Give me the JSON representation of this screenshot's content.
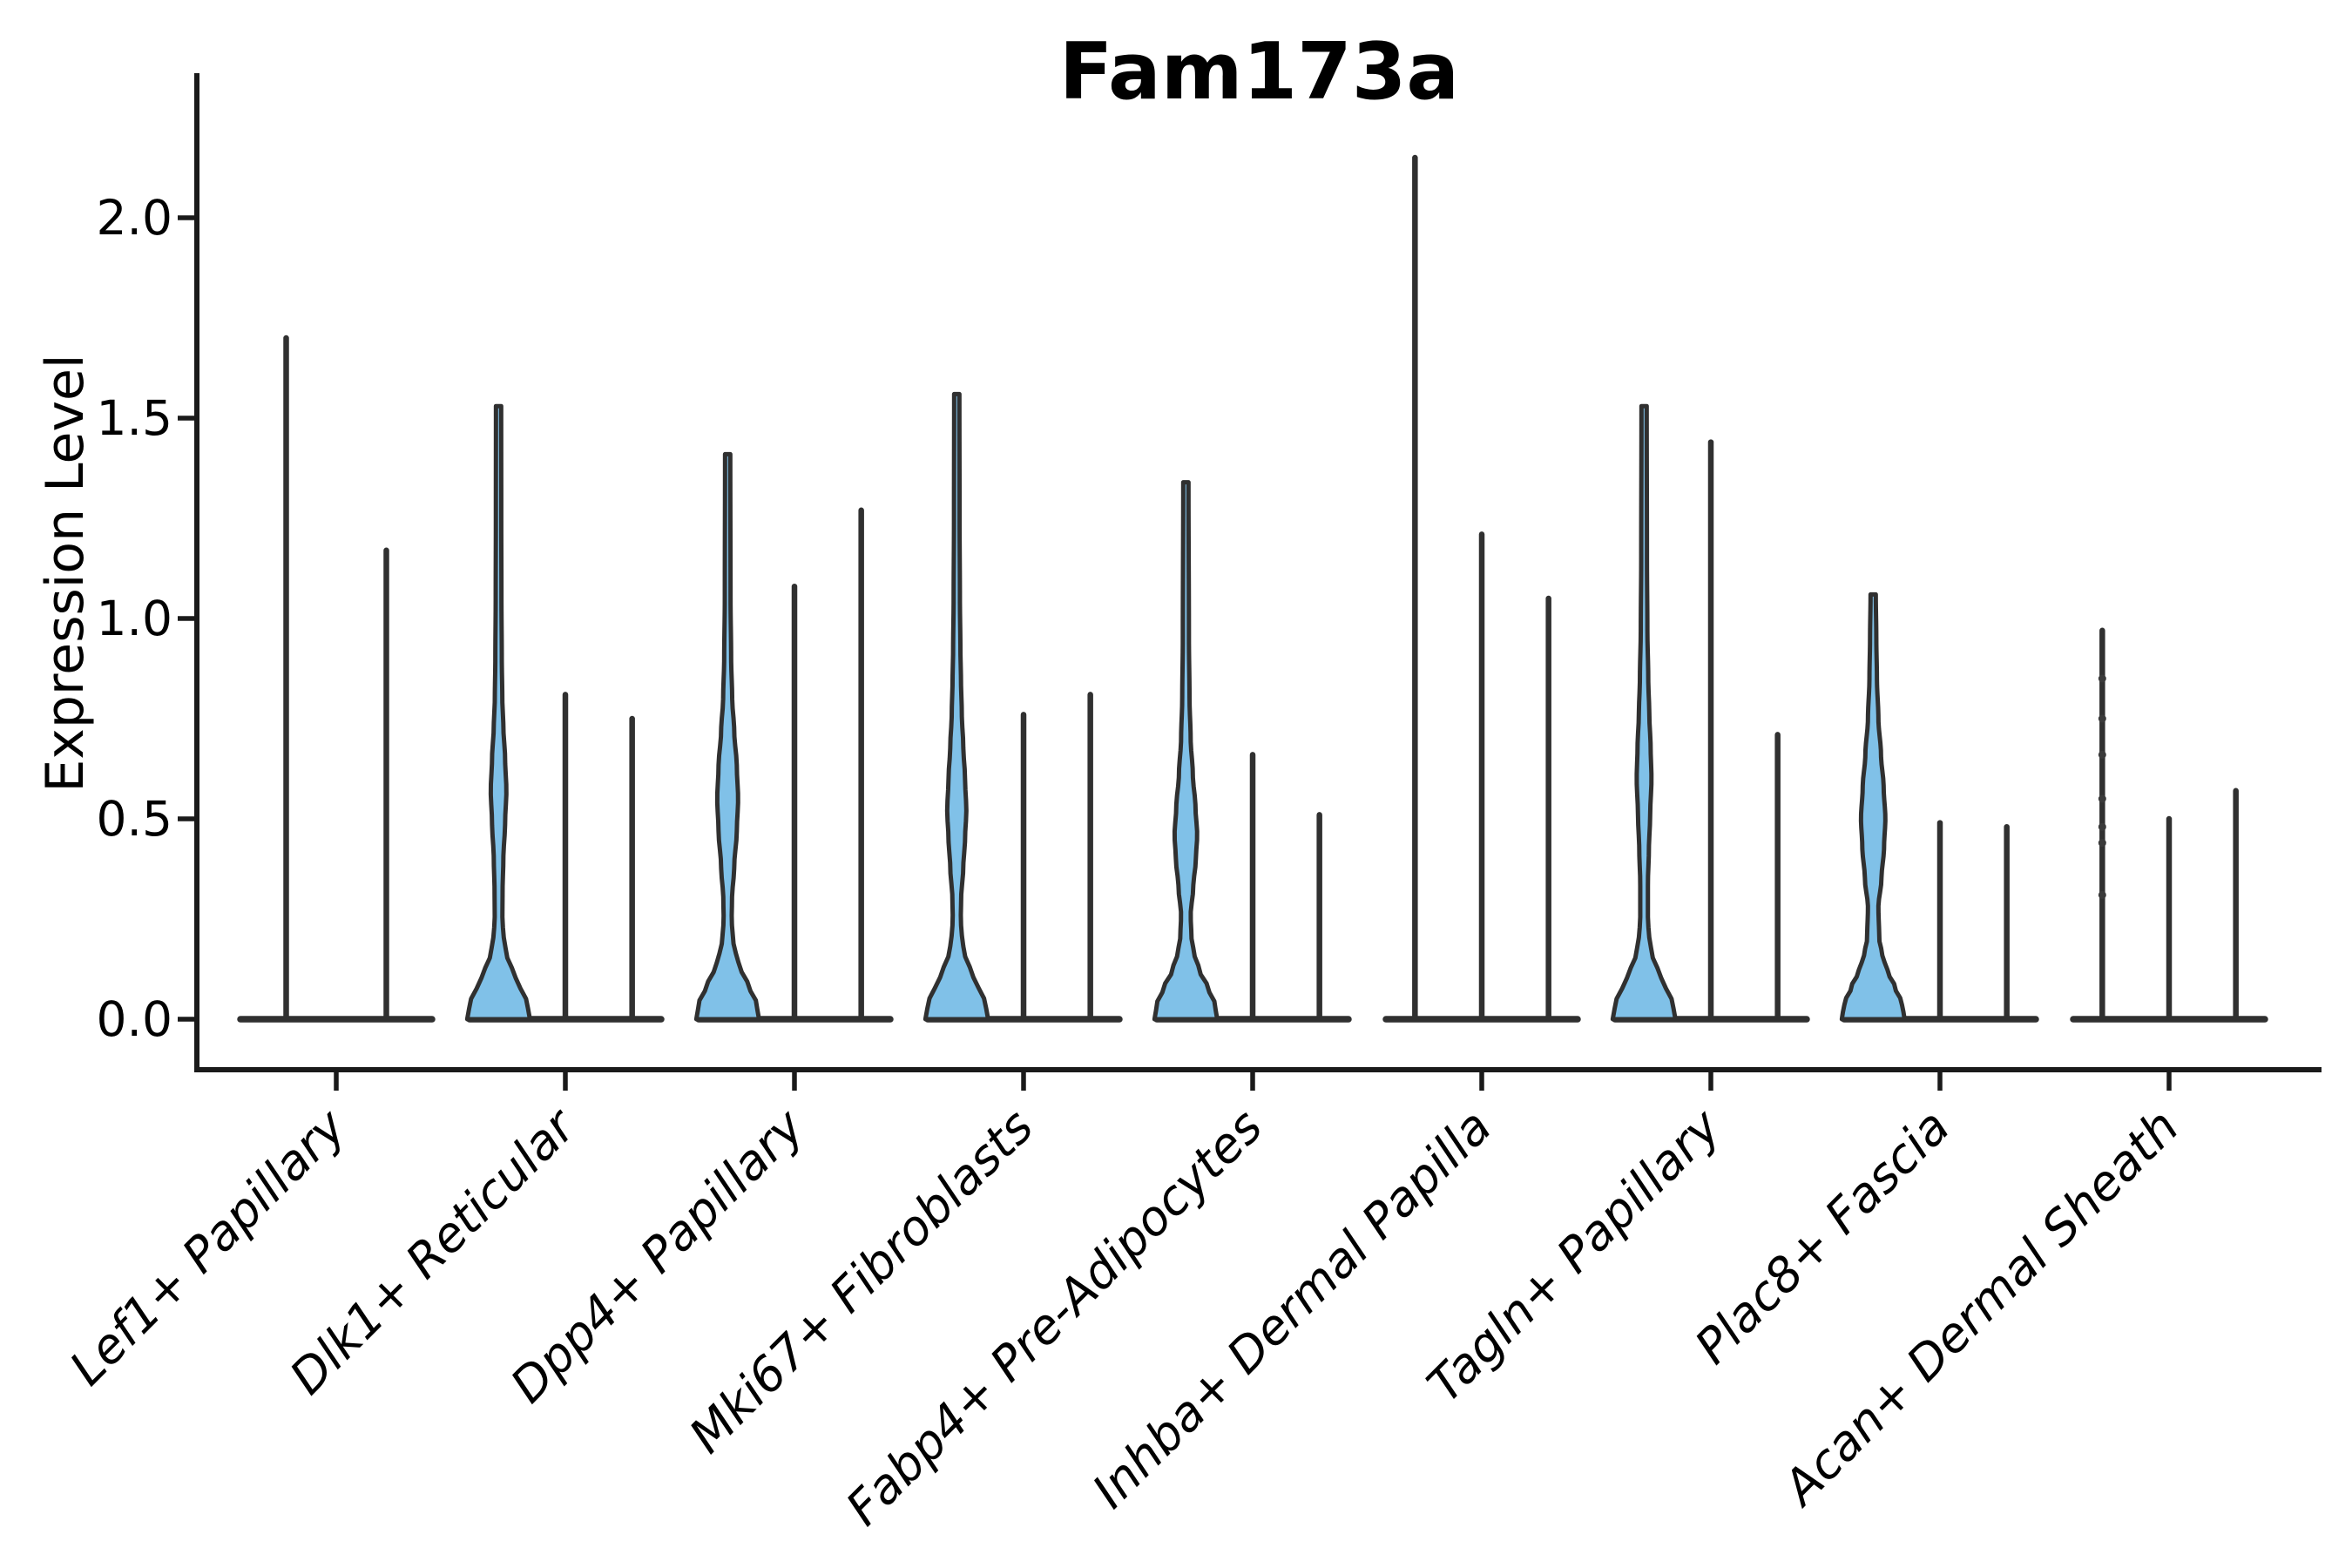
{
  "chart_data": {
    "type": "violin",
    "title": "Fam173a",
    "ylabel": "Expression Level",
    "ylim": [
      0,
      2.41
    ],
    "grid": false,
    "legend": "none",
    "yticks": [
      {
        "value": 0.0,
        "label": "0.0"
      },
      {
        "value": 0.5,
        "label": "0.5"
      },
      {
        "value": 1.0,
        "label": "1.0"
      },
      {
        "value": 1.5,
        "label": "1.5"
      },
      {
        "value": 2.0,
        "label": "2.0"
      }
    ],
    "fill_color": "#80c1e8",
    "edge_color": "#303030",
    "axis_color": "#1a1a1a",
    "categories": [
      "Lef1+ Papillary",
      "Dlk1+ Reticular",
      "Dpp4+ Papillary",
      "Mki67+ Fibroblasts",
      "Fabp4+ Pre-Adipocytes",
      "Inhba+ Dermal Papilla",
      "Tagln+ Papillary",
      "Plac8+ Fascia",
      "Acan+ Dermal Sheath"
    ],
    "groups": [
      {
        "label": "Lef1+ Papillary",
        "violins": [
          {
            "style": "spike",
            "max": 1.7
          },
          {
            "style": "spike",
            "max": 1.17
          }
        ]
      },
      {
        "label": "Dlk1+ Reticular",
        "violins": [
          {
            "style": "violin",
            "max": 1.53,
            "profile": [
              [
                0,
                36
              ],
              [
                0.04,
                33
              ],
              [
                0.08,
                25
              ],
              [
                0.12,
                16
              ],
              [
                0.16,
                9.5
              ],
              [
                0.2,
                6
              ],
              [
                0.25,
                4.4
              ],
              [
                0.32,
                4.6
              ],
              [
                0.4,
                5.5
              ],
              [
                0.49,
                7.5
              ],
              [
                0.57,
                9
              ],
              [
                0.65,
                7.5
              ],
              [
                0.73,
                5.5
              ],
              [
                0.8,
                4.3
              ],
              [
                0.9,
                3.7
              ],
              [
                1.05,
                3.3
              ],
              [
                1.25,
                3.1
              ],
              [
                1.53,
                3
              ]
            ]
          },
          {
            "style": "spike",
            "max": 0.81
          },
          {
            "style": "spike",
            "max": 0.75
          }
        ]
      },
      {
        "label": "Dpp4+ Papillary",
        "violins": [
          {
            "style": "violin",
            "max": 1.41,
            "profile": [
              [
                0,
                36
              ],
              [
                0.04,
                33
              ],
              [
                0.08,
                25
              ],
              [
                0.12,
                16
              ],
              [
                0.16,
                9.5
              ],
              [
                0.2,
                6
              ],
              [
                0.25,
                4.6
              ],
              [
                0.3,
                5
              ],
              [
                0.38,
                7.5
              ],
              [
                0.47,
                10.5
              ],
              [
                0.55,
                12
              ],
              [
                0.63,
                10.5
              ],
              [
                0.72,
                7.5
              ],
              [
                0.8,
                5.2
              ],
              [
                0.9,
                4
              ],
              [
                1.05,
                3.3
              ],
              [
                1.41,
                3
              ]
            ]
          },
          {
            "style": "spike",
            "max": 1.08
          },
          {
            "style": "spike",
            "max": 1.27
          }
        ]
      },
      {
        "label": "Mki67+ Fibroblasts",
        "violins": [
          {
            "style": "violin",
            "max": 1.56,
            "profile": [
              [
                0,
                36
              ],
              [
                0.04,
                33
              ],
              [
                0.08,
                25
              ],
              [
                0.12,
                16
              ],
              [
                0.16,
                9.5
              ],
              [
                0.2,
                6
              ],
              [
                0.25,
                4.6
              ],
              [
                0.3,
                5
              ],
              [
                0.38,
                7.5
              ],
              [
                0.45,
                9.5
              ],
              [
                0.52,
                11
              ],
              [
                0.6,
                9.5
              ],
              [
                0.68,
                7.5
              ],
              [
                0.76,
                5.8
              ],
              [
                0.85,
                4.8
              ],
              [
                0.92,
                4.2
              ],
              [
                1.05,
                3.6
              ],
              [
                1.25,
                3.2
              ],
              [
                1.56,
                3
              ]
            ]
          },
          {
            "style": "spike",
            "max": 0.76
          },
          {
            "style": "spike",
            "max": 0.81
          }
        ]
      },
      {
        "label": "Fabp4+ Pre-Adipocytes",
        "violins": [
          {
            "style": "violin",
            "max": 1.34,
            "profile": [
              [
                0,
                36
              ],
              [
                0.04,
                33
              ],
              [
                0.08,
                25
              ],
              [
                0.12,
                16
              ],
              [
                0.16,
                10
              ],
              [
                0.2,
                6.5
              ],
              [
                0.26,
                5.5
              ],
              [
                0.33,
                8.5
              ],
              [
                0.4,
                11.5
              ],
              [
                0.46,
                13
              ],
              [
                0.53,
                11
              ],
              [
                0.61,
                8
              ],
              [
                0.7,
                5.5
              ],
              [
                0.8,
                4.2
              ],
              [
                0.95,
                3.5
              ],
              [
                1.34,
                3
              ]
            ]
          },
          {
            "style": "spike",
            "max": 0.66
          },
          {
            "style": "spike",
            "max": 0.51
          }
        ]
      },
      {
        "label": "Inhba+ Dermal Papilla",
        "violins": [
          {
            "style": "spike",
            "max": 2.15
          },
          {
            "style": "spike",
            "max": 1.21
          },
          {
            "style": "spike",
            "max": 1.05
          }
        ]
      },
      {
        "label": "Tagln+ Papillary",
        "violins": [
          {
            "style": "violin",
            "max": 1.53,
            "profile": [
              [
                0,
                36
              ],
              [
                0.04,
                33
              ],
              [
                0.08,
                25
              ],
              [
                0.12,
                16
              ],
              [
                0.16,
                9.5
              ],
              [
                0.2,
                6
              ],
              [
                0.25,
                4.4
              ],
              [
                0.34,
                4.4
              ],
              [
                0.42,
                5.5
              ],
              [
                0.51,
                7
              ],
              [
                0.6,
                8.5
              ],
              [
                0.68,
                7.5
              ],
              [
                0.76,
                6
              ],
              [
                0.85,
                4.8
              ],
              [
                0.97,
                3.8
              ],
              [
                1.15,
                3.3
              ],
              [
                1.53,
                3
              ]
            ]
          },
          {
            "style": "spike",
            "max": 1.44
          },
          {
            "style": "spike",
            "max": 0.71
          }
        ]
      },
      {
        "label": "Plac8+ Fascia",
        "violins": [
          {
            "style": "violin",
            "max": 1.06,
            "profile": [
              [
                0,
                36
              ],
              [
                0.04,
                33
              ],
              [
                0.08,
                25
              ],
              [
                0.12,
                16.5
              ],
              [
                0.16,
                10.5
              ],
              [
                0.2,
                7
              ],
              [
                0.28,
                6
              ],
              [
                0.35,
                9.5
              ],
              [
                0.43,
                12.5
              ],
              [
                0.5,
                14
              ],
              [
                0.58,
                12
              ],
              [
                0.66,
                9
              ],
              [
                0.75,
                6
              ],
              [
                0.85,
                4.3
              ],
              [
                0.95,
                3.6
              ],
              [
                1.06,
                3
              ]
            ]
          },
          {
            "style": "spike",
            "max": 0.49
          },
          {
            "style": "spike",
            "max": 0.48
          }
        ]
      },
      {
        "label": "Acan+ Dermal Sheath",
        "violins": [
          {
            "style": "spike",
            "max": 0.97,
            "dots": [
              0.85,
              0.75,
              0.66,
              0.55,
              0.48,
              0.44,
              0.31
            ]
          },
          {
            "style": "spike",
            "max": 0.5
          },
          {
            "style": "spike",
            "max": 0.57
          }
        ]
      }
    ]
  }
}
